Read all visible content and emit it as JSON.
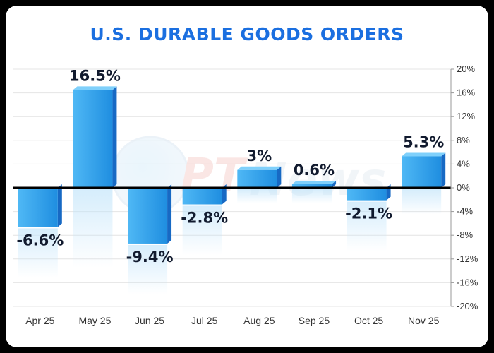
{
  "chart_data": {
    "type": "bar",
    "title": "U.S. DURABLE GOODS ORDERS",
    "categories": [
      "Apr 25",
      "May 25",
      "Jun 25",
      "Jul 25",
      "Aug 25",
      "Sep 25",
      "Oct 25",
      "Nov 25"
    ],
    "values": [
      -6.6,
      16.5,
      -9.4,
      -2.8,
      3,
      0.6,
      -2.1,
      5.3
    ],
    "value_labels": [
      "-6.6%",
      "16.5%",
      "-9.4%",
      "-2.8%",
      "3%",
      "0.6%",
      "-2.1%",
      "5.3%"
    ],
    "yticks": [
      20,
      16,
      12,
      8,
      4,
      0,
      -4,
      -8,
      -12,
      -16,
      -20
    ],
    "ytick_labels": [
      "20%",
      "16%",
      "12%",
      "8%",
      "4%",
      "0%",
      "-4%",
      "-8%",
      "-12%",
      "-16%",
      "-20%"
    ],
    "ylim": [
      -20,
      20
    ],
    "y_axis_side": "right",
    "grid": true,
    "colors": {
      "bar_front": "#2e9ee8",
      "bar_side": "#1769c4",
      "bar_top": "#7fd0fb",
      "title": "#1b6fe0",
      "zero_line": "#000000"
    },
    "watermark": "PTI News"
  }
}
